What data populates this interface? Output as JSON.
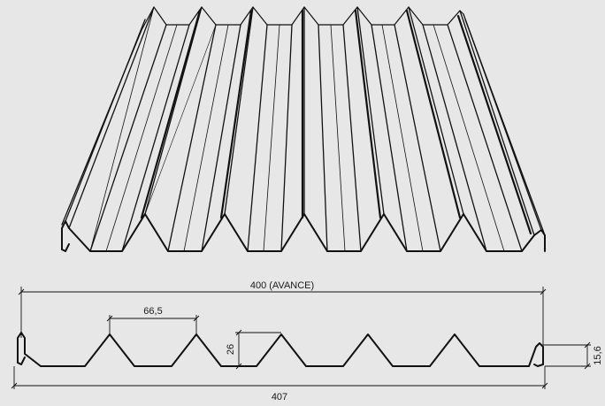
{
  "diagram": {
    "background_color": "#e7e7e7",
    "line_color": "#111111",
    "labels": {
      "width_cover": "400 (AVANCE)",
      "width_total": "407",
      "rib_pitch": "66,5",
      "rib_height": "26",
      "edge_height": "15,6"
    }
  }
}
